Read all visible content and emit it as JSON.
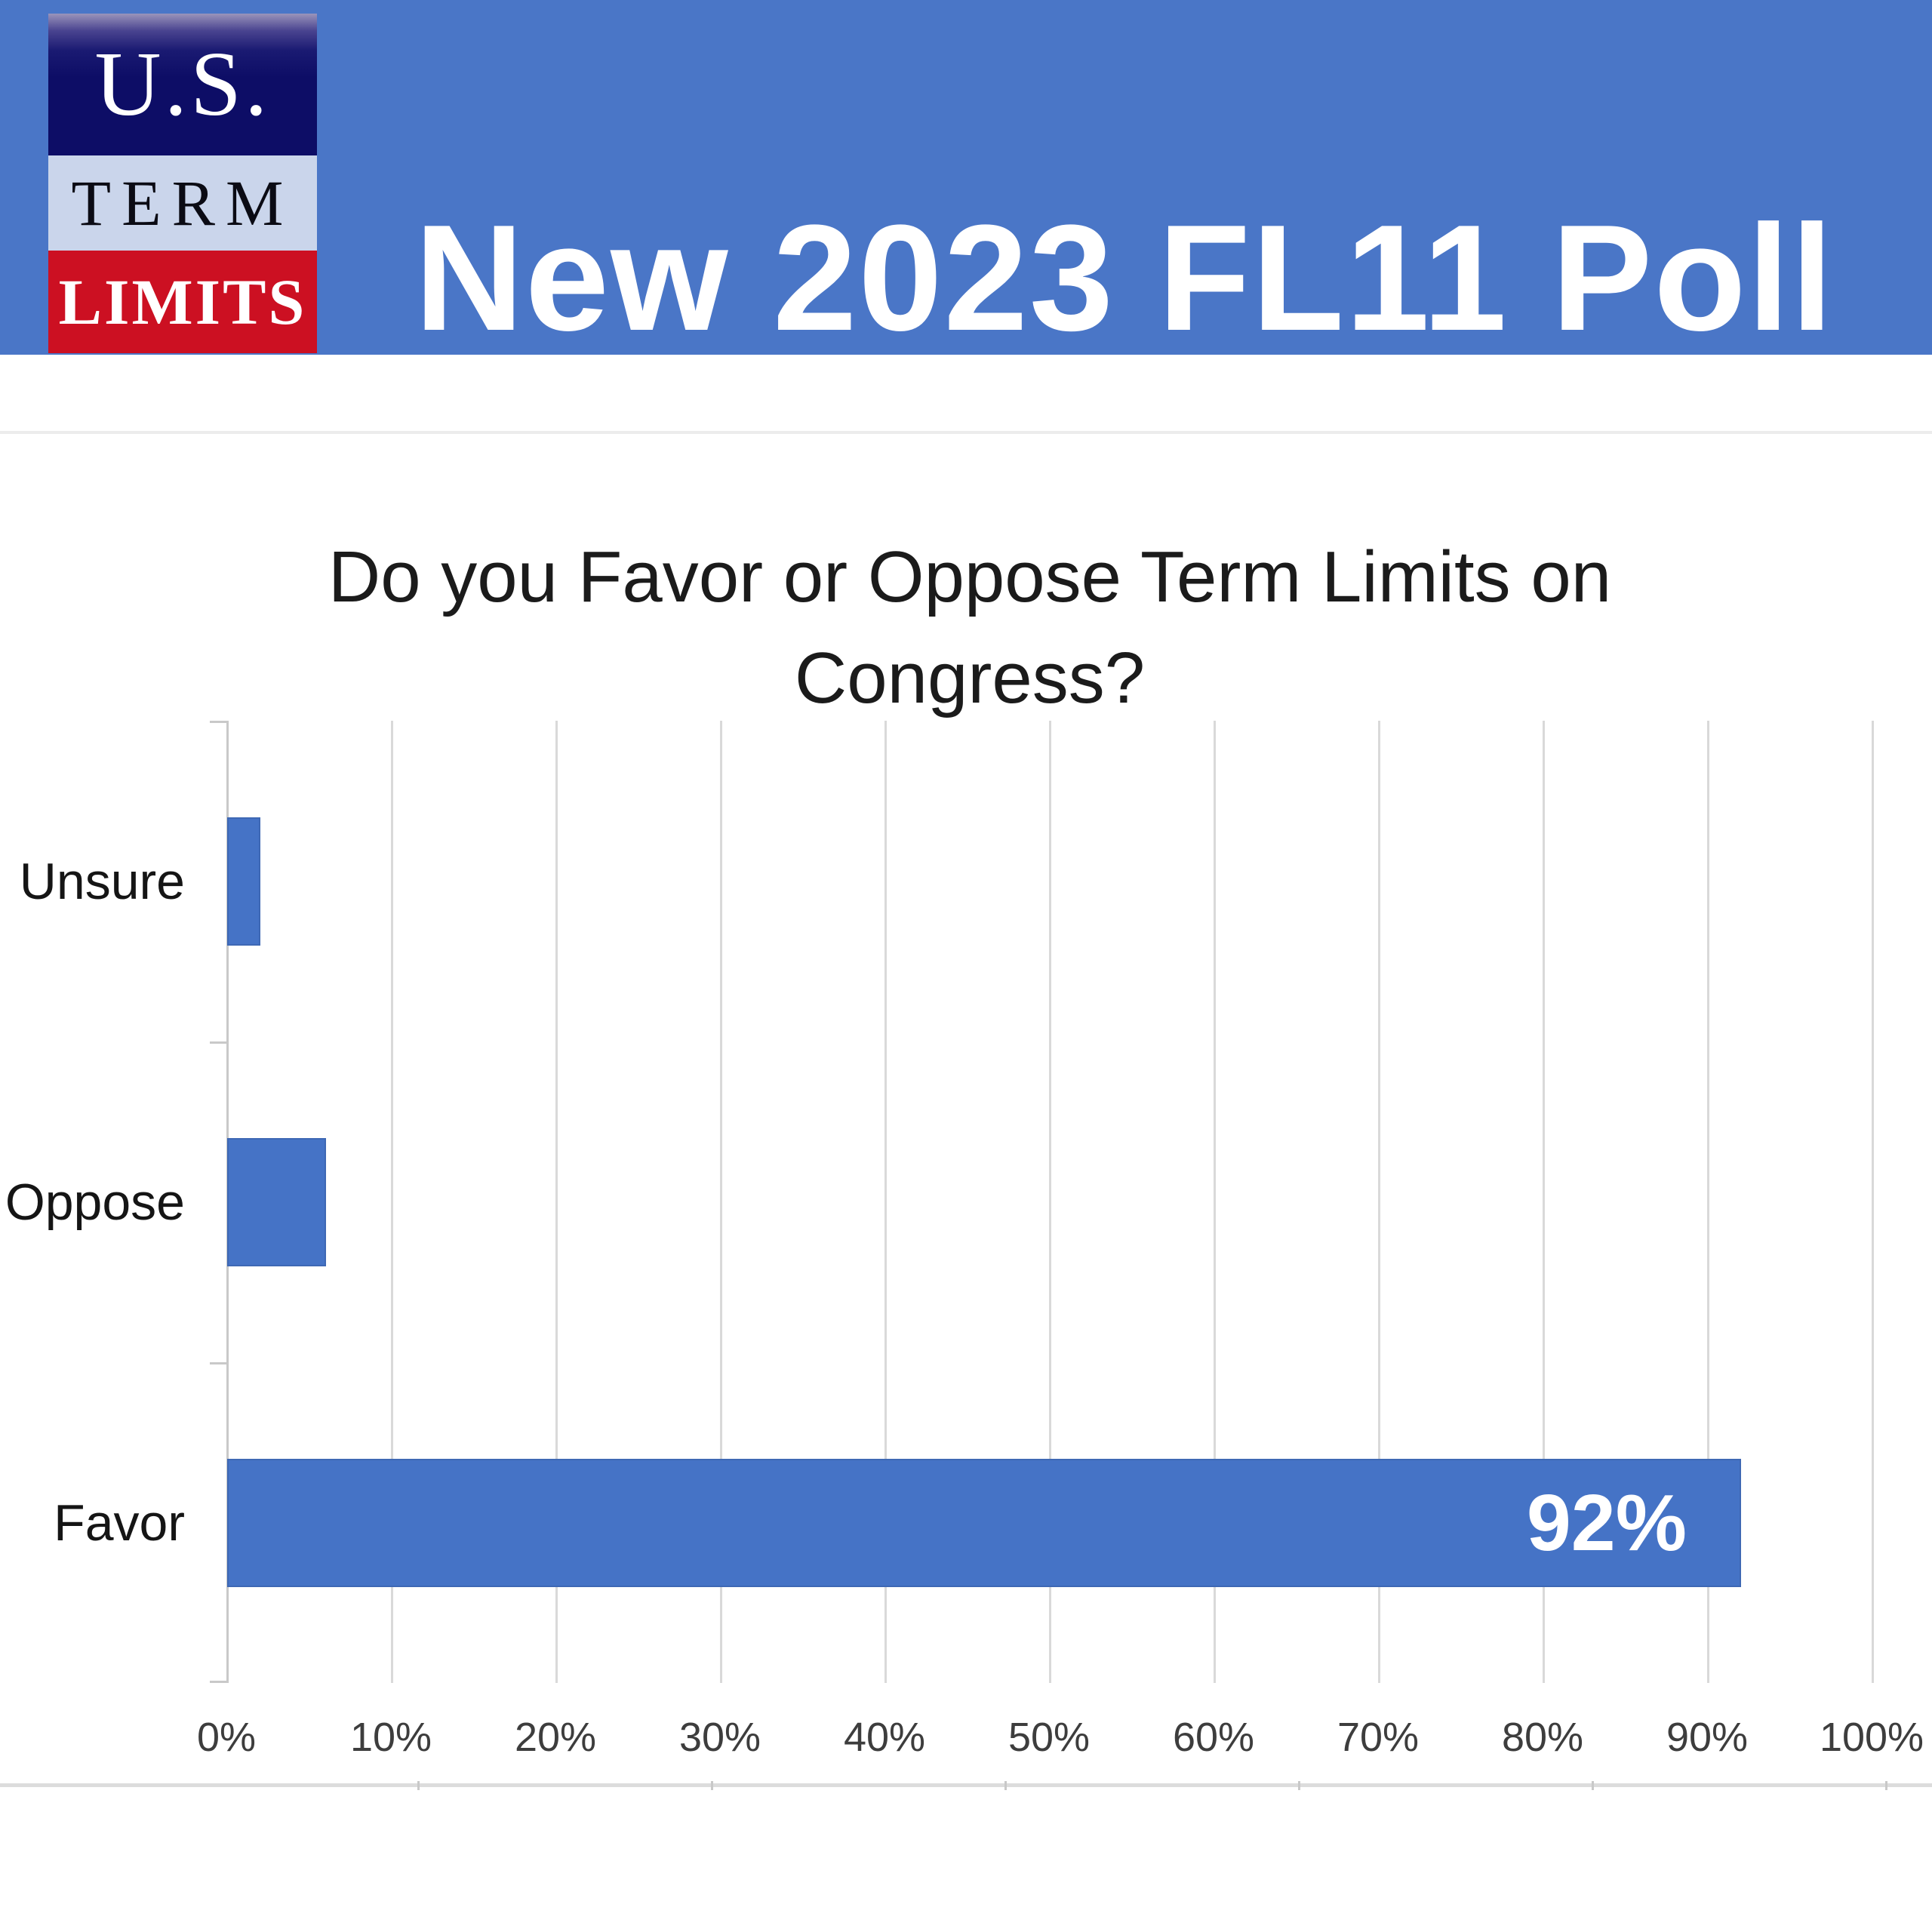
{
  "banner": {
    "title": "New 2023 FL11 Poll",
    "bg_color": "#4a76c7",
    "logo": {
      "line1": "U.S.",
      "line2": "TERM",
      "line3": "LIMITS",
      "navy_color": "#0d0d66",
      "light_band_color": "#cad5eb",
      "red_color": "#cc1022"
    }
  },
  "chart_data": {
    "type": "bar",
    "orientation": "horizontal",
    "title": "Do you Favor or Oppose Term Limits on Congress?",
    "title_lines": [
      "Do you Favor or Oppose Term Limits on",
      "Congress?"
    ],
    "categories": [
      "Unsure",
      "Oppose",
      "Favor"
    ],
    "values": [
      2,
      6,
      92
    ],
    "unit": "%",
    "data_labels": [
      "",
      "",
      "92%"
    ],
    "x_tick_labels": [
      "0%",
      "10%",
      "20%",
      "30%",
      "40%",
      "50%",
      "60%",
      "70%",
      "80%",
      "90%",
      "100%"
    ],
    "xlim": [
      0,
      100
    ],
    "grid": true,
    "legend": false,
    "bar_color": "#4573c6",
    "data_label_color": "#ffffff"
  }
}
